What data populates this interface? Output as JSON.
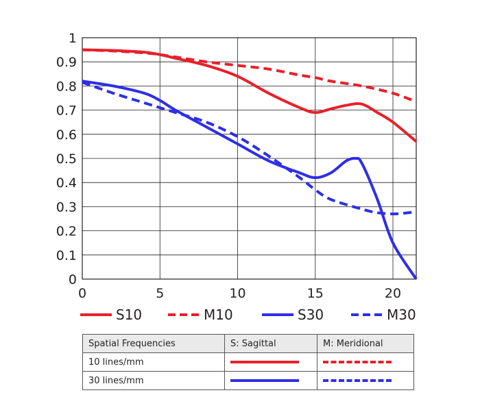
{
  "chart_data": {
    "type": "line",
    "title": "",
    "xlabel": "",
    "ylabel": "",
    "xlim": [
      0,
      21.5
    ],
    "ylim": [
      0,
      1
    ],
    "xticks": [
      "0",
      "5",
      "10",
      "15",
      "20"
    ],
    "xtick_values": [
      0,
      5,
      10,
      15,
      20
    ],
    "yticks": [
      "0",
      "0.1",
      "0.2",
      "0.3",
      "0.4",
      "0.5",
      "0.6",
      "0.7",
      "0.8",
      "0.9",
      "1"
    ],
    "ytick_values": [
      0,
      0.1,
      0.2,
      0.3,
      0.4,
      0.5,
      0.6,
      0.7,
      0.8,
      0.9,
      1.0
    ],
    "grid": true,
    "legend_position": "bottom",
    "series": [
      {
        "name": "S10",
        "color": "#e8202a",
        "style": "solid",
        "x": [
          0,
          2,
          4,
          5,
          6,
          8,
          10,
          12,
          14,
          15,
          16,
          17,
          18,
          19,
          20,
          21.5
        ],
        "y": [
          0.95,
          0.947,
          0.94,
          0.93,
          0.915,
          0.885,
          0.84,
          0.77,
          0.71,
          0.69,
          0.705,
          0.72,
          0.725,
          0.69,
          0.65,
          0.57
        ]
      },
      {
        "name": "M10",
        "color": "#e8202a",
        "style": "dashed",
        "x": [
          0,
          2,
          4,
          5,
          6,
          8,
          10,
          12,
          14,
          15,
          16,
          18,
          20,
          21.5
        ],
        "y": [
          0.95,
          0.945,
          0.937,
          0.93,
          0.92,
          0.9,
          0.885,
          0.87,
          0.845,
          0.835,
          0.82,
          0.8,
          0.77,
          0.735
        ]
      },
      {
        "name": "S30",
        "color": "#2d2ee8",
        "style": "solid",
        "x": [
          0,
          2,
          4,
          5,
          6,
          8,
          10,
          12,
          14,
          15,
          16,
          17,
          17.6,
          18,
          19,
          20,
          21.5
        ],
        "y": [
          0.82,
          0.8,
          0.77,
          0.74,
          0.7,
          0.63,
          0.56,
          0.49,
          0.44,
          0.42,
          0.44,
          0.49,
          0.5,
          0.48,
          0.33,
          0.15,
          0.0
        ]
      },
      {
        "name": "M30",
        "color": "#2d2ee8",
        "style": "dashed",
        "x": [
          0,
          2,
          4,
          5,
          6,
          8,
          10,
          12,
          14,
          15,
          16,
          18,
          19,
          20,
          21,
          21.5
        ],
        "y": [
          0.815,
          0.77,
          0.73,
          0.71,
          0.69,
          0.65,
          0.59,
          0.51,
          0.42,
          0.37,
          0.33,
          0.29,
          0.275,
          0.27,
          0.275,
          0.28
        ]
      }
    ]
  },
  "table": {
    "headers": [
      "Spatial Frequencies",
      "S: Sagittal",
      "M: Meridional"
    ],
    "rows": [
      {
        "label": "10 lines/mm",
        "color": "#e8202a"
      },
      {
        "label": "30 lines/mm",
        "color": "#2d2ee8"
      }
    ]
  }
}
